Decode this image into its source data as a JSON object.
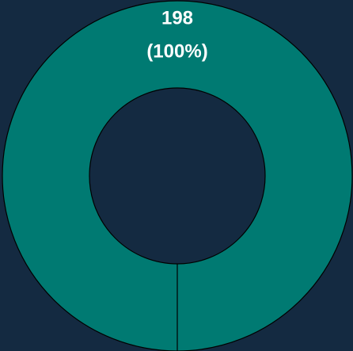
{
  "chart_data": {
    "type": "donut",
    "values": [
      198
    ],
    "value_labels": [
      "198"
    ],
    "percentages": [
      100
    ],
    "percentage_labels": [
      "(100%)"
    ],
    "colors": [
      "#007a72"
    ]
  }
}
